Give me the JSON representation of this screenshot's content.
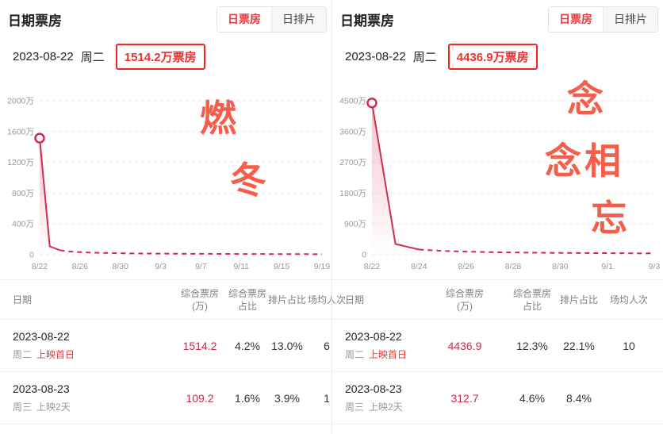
{
  "colors": {
    "accent_red": "#e23c3c",
    "chart_line": "#d22b50",
    "watermark_red": "#f4513b",
    "annotation_border_red": "#ff1f1f",
    "value_red": "#c72c4e"
  },
  "chart_data": [
    {
      "type": "line",
      "watermark": "燃冬",
      "unit": "万",
      "x_tick_labels": [
        "8/22",
        "8/26",
        "8/30",
        "9/3",
        "9/7",
        "9/11",
        "9/15",
        "9/19"
      ],
      "y_tick_values": [
        0,
        400,
        800,
        1200,
        1600,
        2000
      ],
      "y_tick_labels": [
        "0",
        "400万",
        "800万",
        "1200万",
        "1600万",
        "2000万"
      ],
      "ylim": [
        0,
        2000
      ],
      "values": [
        1514.2,
        109.2,
        58,
        41,
        33,
        27,
        24,
        21,
        19,
        17,
        16,
        15,
        14,
        13,
        12,
        12,
        11,
        11,
        10,
        10,
        9,
        9,
        9,
        8,
        8,
        8,
        8,
        7,
        7
      ],
      "first_point": {
        "date": "2023-08-22",
        "value": 1514.2
      },
      "second_point": {
        "date": "2023-08-23",
        "value": 109.2
      },
      "style": {
        "solid_until_index": 2,
        "dashed_after": true,
        "marker_on_first": true,
        "grid": "dashed-horizontal",
        "legend": "none"
      }
    },
    {
      "type": "line",
      "watermark": "念念相忘",
      "unit": "万",
      "x_tick_labels": [
        "8/22",
        "8/24",
        "8/26",
        "8/28",
        "8/30",
        "9/1",
        "9/3"
      ],
      "y_tick_values": [
        0,
        900,
        1800,
        2700,
        3600,
        4500
      ],
      "y_tick_labels": [
        "0",
        "900万",
        "1800万",
        "2700万",
        "3600万",
        "4500万"
      ],
      "ylim": [
        0,
        4500
      ],
      "values": [
        4436.9,
        312.7,
        150,
        110,
        90,
        75,
        65,
        58,
        52,
        48,
        45,
        42,
        40
      ],
      "first_point": {
        "date": "2023-08-22",
        "value": 4436.9
      },
      "second_point": {
        "date": "2023-08-23",
        "value": 312.7
      },
      "style": {
        "solid_until_index": 2,
        "dashed_after": true,
        "marker_on_first": true,
        "grid": "dashed-horizontal",
        "legend": "none"
      }
    }
  ],
  "panels": [
    {
      "title": "日期票房",
      "tabs": [
        {
          "label": "日票房",
          "active": true
        },
        {
          "label": "日排片",
          "active": false
        }
      ],
      "date": "2023-08-22",
      "weekday": "周二",
      "highlight": "1514.2万票房",
      "watermark_chars": [
        "燃",
        "冬"
      ],
      "table": {
        "headers": [
          {
            "l1": "日期"
          },
          {
            "l1": "综合票房",
            "l2": "(万)"
          },
          {
            "l1": "综合票房",
            "l2": "占比"
          },
          {
            "l1": "排片占比"
          },
          {
            "l1": "场均人次"
          }
        ],
        "rows": [
          {
            "date": "2023-08-22",
            "weekday": "周二",
            "tag": "上映首日",
            "tag_color": "red",
            "cells": [
              "1514.2",
              "4.2%",
              "13.0%",
              "6"
            ]
          },
          {
            "date": "2023-08-23",
            "weekday": "周三",
            "tag": "上映2天",
            "tag_color": "gray",
            "cells": [
              "109.2",
              "1.6%",
              "3.9%",
              "1"
            ]
          }
        ]
      }
    },
    {
      "title": "日期票房",
      "tabs": [
        {
          "label": "日票房",
          "active": true
        },
        {
          "label": "日排片",
          "active": false
        }
      ],
      "date": "2023-08-22",
      "weekday": "周二",
      "highlight": "4436.9万票房",
      "watermark_chars": [
        "念",
        "念相",
        "忘"
      ],
      "table": {
        "headers": [
          {
            "l1": "日期"
          },
          {
            "l1": "综合票房",
            "l2": "(万)"
          },
          {
            "l1": "综合票房",
            "l2": "占比"
          },
          {
            "l1": "排片占比"
          },
          {
            "l1": "场均人次"
          }
        ],
        "rows": [
          {
            "date": "2023-08-22",
            "weekday": "周二",
            "tag": "上映首日",
            "tag_color": "red",
            "cells": [
              "4436.9",
              "12.3%",
              "22.1%",
              "10"
            ]
          },
          {
            "date": "2023-08-23",
            "weekday": "周三",
            "tag": "上映2天",
            "tag_color": "gray",
            "cells": [
              "312.7",
              "4.6%",
              "8.4%",
              ""
            ]
          }
        ]
      }
    }
  ]
}
